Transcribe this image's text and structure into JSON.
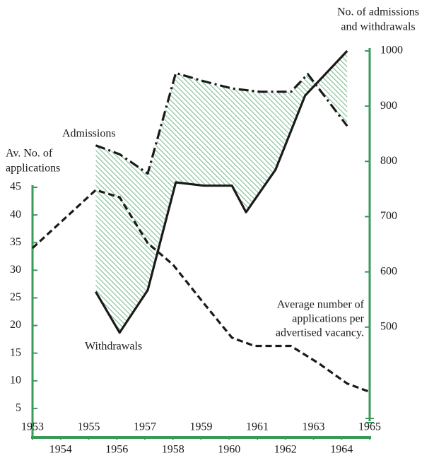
{
  "chart_data": {
    "type": "line",
    "y_label": [
      "Av. No. of",
      "applications"
    ],
    "y2_label": [
      "No. of admissions",
      "and withdrawals"
    ],
    "annotations": {
      "admissions": "Admissions",
      "withdrawals": "Withdrawals",
      "applications": [
        "Average number of",
        "applications per",
        "advertised vacancy."
      ]
    },
    "xlim": [
      1953,
      1965
    ],
    "xticks": [
      1953,
      1954,
      1955,
      1956,
      1957,
      1958,
      1959,
      1960,
      1961,
      1962,
      1963,
      1964,
      1965
    ],
    "ylim": [
      0,
      45
    ],
    "yticks": [
      5,
      10,
      15,
      20,
      25,
      30,
      35,
      40,
      45
    ],
    "y2lim": [
      400,
      1000
    ],
    "y2ticks": [
      500,
      600,
      700,
      800,
      900,
      1000
    ],
    "axis_color": "#3a9a5a",
    "fill_between": "#3a9a5a",
    "series": [
      {
        "name": "Admissions",
        "axis": "y2",
        "color": "#1a1a1a",
        "dash": "14 5 3 5",
        "x": [
          1955.25,
          1956.1,
          1957.1,
          1958.1,
          1959.1,
          1960.1,
          1961.1,
          1962.2,
          1962.8,
          1964.2
        ],
        "values": [
          829,
          813,
          778,
          960,
          945,
          932,
          926,
          926,
          958,
          864
        ]
      },
      {
        "name": "Withdrawals",
        "axis": "y2",
        "color": "#1a1a1a",
        "dash": "none",
        "x": [
          1955.25,
          1956.1,
          1957.1,
          1958.1,
          1959.1,
          1960.1,
          1960.6,
          1961.65,
          1962.7,
          1964.2
        ],
        "values": [
          564,
          490,
          567,
          762,
          756,
          756,
          708,
          785,
          919,
          1000
        ]
      },
      {
        "axis": "y",
        "color": "#1a1a1a",
        "dash": "9 5",
        "x": [
          1953,
          1955.25,
          1956.1,
          1957.1,
          1958,
          1959.1,
          1960.1,
          1960.9,
          1962.2,
          1963.2,
          1964.2,
          1965
        ],
        "values": [
          34,
          44.5,
          43.2,
          34.9,
          31,
          24,
          17.8,
          16.3,
          16.3,
          13.1,
          9.5,
          8
        ]
      }
    ]
  }
}
